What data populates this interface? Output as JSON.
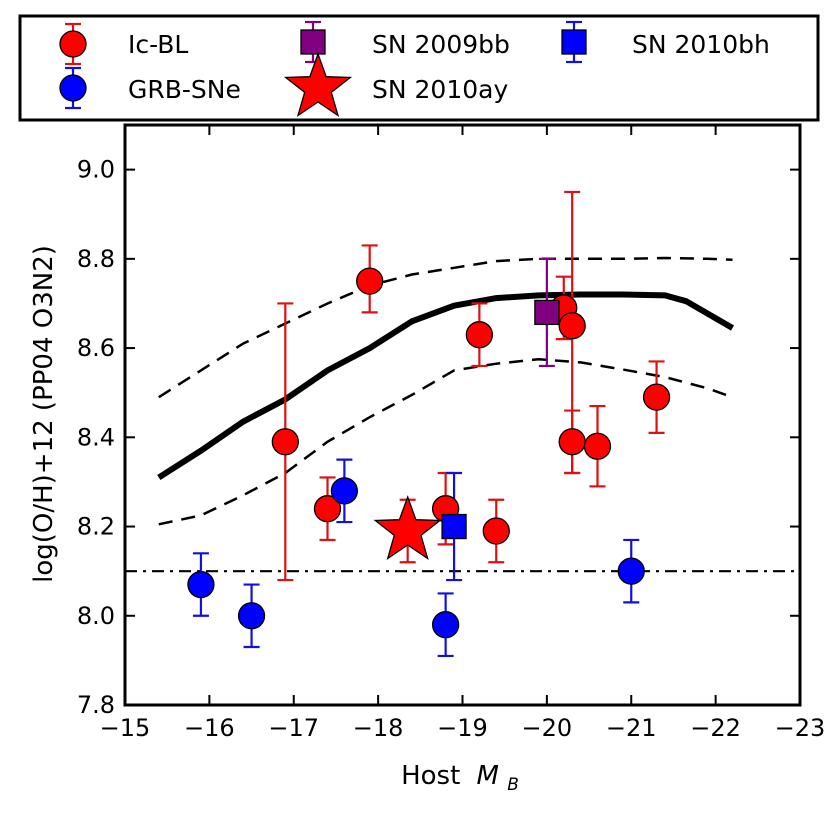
{
  "chart_data": {
    "type": "scatter",
    "xlabel": "Host",
    "xlabel_math": "M",
    "xlabel_sub": "B",
    "ylabel": "log(O/H)+12 (PP04 O3N2)",
    "xlim": [
      -15,
      -23
    ],
    "ylim": [
      7.8,
      9.1
    ],
    "x_ticks": [
      -15,
      -16,
      -17,
      -18,
      -19,
      -20,
      -21,
      -22,
      -23
    ],
    "x_tick_labels": [
      "−15",
      "−16",
      "−17",
      "−18",
      "−19",
      "−20",
      "−21",
      "−22",
      "−23"
    ],
    "y_ticks": [
      7.8,
      8.0,
      8.2,
      8.4,
      8.6,
      8.8,
      9.0
    ],
    "y_tick_labels": [
      "7.8",
      "8.0",
      "8.2",
      "8.4",
      "8.6",
      "8.8",
      "9.0"
    ],
    "colors": {
      "icbl": "#ff0000",
      "icbl_err": "#dd1111",
      "grb": "#0000ff",
      "grb_err": "#1111dd",
      "sn2009bb": "#800080",
      "sn2010ay": "#ff0000",
      "sn2010bh": "#0000ff"
    },
    "legend": {
      "placement": "top, outside axes",
      "entries": [
        {
          "label": "Ic-BL",
          "series": "icbl",
          "marker": "circle"
        },
        {
          "label": "SN 2009bb",
          "series": "sn2009bb",
          "marker": "square"
        },
        {
          "label": "SN 2010bh",
          "series": "sn2010bh",
          "marker": "square"
        },
        {
          "label": "GRB-SNe",
          "series": "grb",
          "marker": "circle"
        },
        {
          "label": "SN 2010ay",
          "series": "sn2010ay",
          "marker": "star"
        }
      ]
    },
    "series": [
      {
        "name": "Ic-BL",
        "key": "icbl",
        "marker": "circle",
        "points": [
          {
            "x": -16.9,
            "y": 8.39,
            "lo": 8.08,
            "hi": 8.7
          },
          {
            "x": -17.4,
            "y": 8.24,
            "lo": 8.17,
            "hi": 8.31
          },
          {
            "x": -17.9,
            "y": 8.75,
            "lo": 8.68,
            "hi": 8.83
          },
          {
            "x": -18.8,
            "y": 8.24,
            "lo": 8.16,
            "hi": 8.32
          },
          {
            "x": -19.2,
            "y": 8.63,
            "lo": 8.56,
            "hi": 8.7
          },
          {
            "x": -19.4,
            "y": 8.19,
            "lo": 8.12,
            "hi": 8.26
          },
          {
            "x": -20.2,
            "y": 8.69,
            "lo": 8.62,
            "hi": 8.76
          },
          {
            "x": -20.3,
            "y": 8.65,
            "lo": 8.32,
            "hi": 8.95
          },
          {
            "x": -20.3,
            "y": 8.39,
            "lo": 8.32,
            "hi": 8.46
          },
          {
            "x": -20.6,
            "y": 8.38,
            "lo": 8.29,
            "hi": 8.47
          },
          {
            "x": -21.3,
            "y": 8.49,
            "lo": 8.41,
            "hi": 8.57
          }
        ]
      },
      {
        "name": "GRB-SNe",
        "key": "grb",
        "marker": "circle",
        "points": [
          {
            "x": -15.9,
            "y": 8.07,
            "lo": 8.0,
            "hi": 8.14
          },
          {
            "x": -16.5,
            "y": 8.0,
            "lo": 7.93,
            "hi": 8.07
          },
          {
            "x": -17.6,
            "y": 8.28,
            "lo": 8.21,
            "hi": 8.35
          },
          {
            "x": -18.8,
            "y": 7.98,
            "lo": 7.91,
            "hi": 8.05
          },
          {
            "x": -21.0,
            "y": 8.1,
            "lo": 8.03,
            "hi": 8.17
          }
        ]
      },
      {
        "name": "SN 2009bb",
        "key": "sn2009bb",
        "marker": "square",
        "points": [
          {
            "x": -20.0,
            "y": 8.68,
            "lo": 8.56,
            "hi": 8.8
          }
        ]
      },
      {
        "name": "SN 2010bh",
        "key": "sn2010bh",
        "marker": "square",
        "points": [
          {
            "x": -18.9,
            "y": 8.2,
            "lo": 8.08,
            "hi": 8.32
          }
        ]
      },
      {
        "name": "SN 2010ay",
        "key": "sn2010ay",
        "marker": "star",
        "points": [
          {
            "x": -18.35,
            "y": 8.19,
            "lo": 8.12,
            "hi": 8.26
          }
        ]
      }
    ],
    "lines": [
      {
        "name": "mass-metallicity-relation",
        "style": "solid-thick",
        "x": [
          -15.4,
          -15.9,
          -16.4,
          -16.9,
          -17.4,
          -17.9,
          -18.4,
          -18.9,
          -19.4,
          -19.9,
          -20.4,
          -20.9,
          -21.4,
          -21.65,
          -22.2
        ],
        "y": [
          8.31,
          8.37,
          8.435,
          8.485,
          8.55,
          8.6,
          8.66,
          8.695,
          8.712,
          8.718,
          8.72,
          8.72,
          8.718,
          8.705,
          8.645
        ]
      },
      {
        "name": "upper-scatter",
        "style": "dashed",
        "x": [
          -15.4,
          -15.9,
          -16.4,
          -16.9,
          -17.4,
          -17.9,
          -18.4,
          -18.9,
          -19.4,
          -19.9,
          -20.4,
          -20.9,
          -21.4,
          -21.9,
          -22.2
        ],
        "y": [
          8.49,
          8.55,
          8.61,
          8.655,
          8.7,
          8.74,
          8.765,
          8.78,
          8.795,
          8.8,
          8.8,
          8.8,
          8.802,
          8.8,
          8.798
        ]
      },
      {
        "name": "lower-scatter",
        "style": "dashed",
        "x": [
          -15.4,
          -15.9,
          -16.4,
          -16.9,
          -17.4,
          -17.9,
          -18.4,
          -18.9,
          -19.4,
          -19.9,
          -20.4,
          -20.9,
          -21.4,
          -21.9,
          -22.2
        ],
        "y": [
          8.205,
          8.225,
          8.27,
          8.32,
          8.39,
          8.445,
          8.495,
          8.55,
          8.565,
          8.575,
          8.568,
          8.552,
          8.535,
          8.51,
          8.49
        ]
      },
      {
        "name": "reference-line",
        "style": "dashdot",
        "x": [
          -15,
          -23
        ],
        "y": [
          8.1,
          8.1
        ]
      }
    ]
  }
}
